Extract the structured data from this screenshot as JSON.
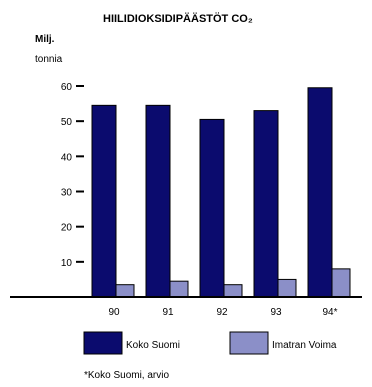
{
  "chart_data": {
    "type": "bar",
    "title": "HIILIDIOKSIDIPÄÄSTÖT CO₂",
    "ylabel_line1": "Milj.",
    "ylabel_line2": "tonnia",
    "categories": [
      "90",
      "91",
      "92",
      "93",
      "94*"
    ],
    "yticks": [
      "10",
      "20",
      "30",
      "40",
      "50",
      "60"
    ],
    "ylim": [
      0,
      60
    ],
    "series": [
      {
        "name": "Koko Suomi",
        "values": [
          54.5,
          54.5,
          50.5,
          53,
          59.5
        ],
        "color": "#0b0b6e"
      },
      {
        "name": "Imatran Voima",
        "values": [
          3.5,
          4.5,
          3.5,
          5,
          8
        ],
        "color": "#8b8fc8"
      }
    ],
    "grid": false,
    "legend_position": "bottom",
    "footnote": "*Koko Suomi, arvio"
  }
}
